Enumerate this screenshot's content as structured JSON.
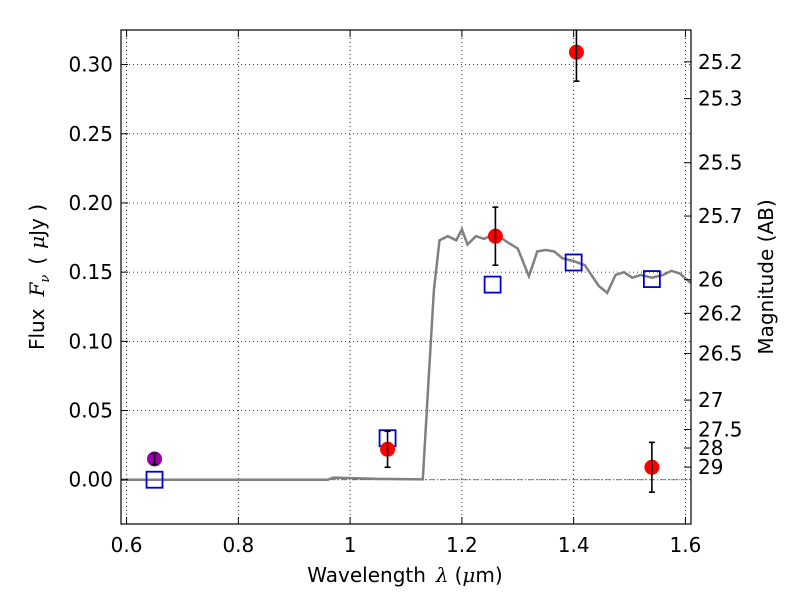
{
  "chart_data": {
    "type": "scatter",
    "xlabel_prefix": "Wavelength",
    "xlabel_var": "λ",
    "xlabel_unit_open": "(",
    "xlabel_unit_mu": "μ",
    "xlabel_unit_rest": "m)",
    "ylabel_prefix": "Flux",
    "ylabel_var": "F",
    "ylabel_sub": "ν",
    "ylabel_unit_open": "(",
    "ylabel_unit_mu": "μ",
    "ylabel_unit_rest": "Jy )",
    "y2label": "Magnitude (AB)",
    "xlim": [
      0.59,
      1.61
    ],
    "ylim": [
      -0.032,
      0.325
    ],
    "grid": true,
    "x_ticks": [
      {
        "value": 0.6,
        "label": "0.6"
      },
      {
        "value": 0.8,
        "label": "0.8"
      },
      {
        "value": 1.0,
        "label": "1"
      },
      {
        "value": 1.2,
        "label": "1.2"
      },
      {
        "value": 1.4,
        "label": "1.4"
      },
      {
        "value": 1.6,
        "label": "1.6"
      }
    ],
    "y_ticks": [
      {
        "value": 0.0,
        "label": "0.00"
      },
      {
        "value": 0.05,
        "label": "0.05"
      },
      {
        "value": 0.1,
        "label": "0.10"
      },
      {
        "value": 0.15,
        "label": "0.15"
      },
      {
        "value": 0.2,
        "label": "0.20"
      },
      {
        "value": 0.25,
        "label": "0.25"
      },
      {
        "value": 0.3,
        "label": "0.30"
      }
    ],
    "y2_ticks": [
      {
        "value": 25.2,
        "label": "25.2"
      },
      {
        "value": 25.3,
        "label": "25.3"
      },
      {
        "value": 25.5,
        "label": "25.5"
      },
      {
        "value": 25.7,
        "label": "25.7"
      },
      {
        "value": 26.0,
        "label": "26"
      },
      {
        "value": 26.2,
        "label": "26.2"
      },
      {
        "value": 26.5,
        "label": "26.5"
      },
      {
        "value": 27.0,
        "label": "27"
      },
      {
        "value": 27.5,
        "label": "27.5"
      },
      {
        "value": 28.0,
        "label": "28"
      },
      {
        "value": 29.0,
        "label": "29"
      }
    ],
    "model_line": {
      "color": "#808080",
      "x": [
        0.59,
        0.96,
        0.97,
        1.0,
        1.05,
        1.13,
        1.14,
        1.15,
        1.16,
        1.175,
        1.19,
        1.2,
        1.21,
        1.225,
        1.24,
        1.26,
        1.28,
        1.3,
        1.32,
        1.335,
        1.35,
        1.365,
        1.38,
        1.4,
        1.42,
        1.445,
        1.46,
        1.475,
        1.49,
        1.505,
        1.52,
        1.54,
        1.56,
        1.575,
        1.59,
        1.61
      ],
      "y": [
        0.0,
        0.0,
        0.0015,
        0.0012,
        0.0006,
        0.0002,
        0.07,
        0.137,
        0.173,
        0.176,
        0.173,
        0.181,
        0.17,
        0.176,
        0.174,
        0.178,
        0.172,
        0.167,
        0.147,
        0.165,
        0.166,
        0.165,
        0.16,
        0.158,
        0.155,
        0.14,
        0.135,
        0.148,
        0.15,
        0.146,
        0.148,
        0.146,
        0.148,
        0.151,
        0.149,
        0.142
      ]
    },
    "observed": {
      "color": "#ff0000",
      "points": [
        {
          "x": 1.067,
          "y": 0.022,
          "err": 0.013
        },
        {
          "x": 1.26,
          "y": 0.176,
          "err": 0.021
        },
        {
          "x": 1.405,
          "y": 0.309,
          "err": 0.021
        },
        {
          "x": 1.54,
          "y": 0.009,
          "err": 0.018
        }
      ]
    },
    "observed_magenta": {
      "color": "#9900aa",
      "points": [
        {
          "x": 0.65,
          "y": 0.015,
          "err": 0.004
        }
      ]
    },
    "model_bands": {
      "color": "#0000cc",
      "points": [
        {
          "x": 0.65,
          "y": 0.0
        },
        {
          "x": 1.067,
          "y": 0.03
        },
        {
          "x": 1.255,
          "y": 0.141
        },
        {
          "x": 1.4,
          "y": 0.157
        },
        {
          "x": 1.54,
          "y": 0.145
        }
      ]
    }
  }
}
